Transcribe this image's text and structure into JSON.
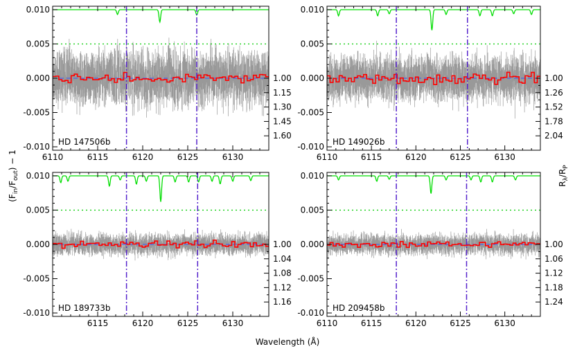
{
  "figure": {
    "xlabel": "Wavelength (Å)",
    "ylabel": "(F_in/F_out) − 1",
    "ylabel_main": "(F",
    "ylabel_sub1": "in",
    "ylabel_mid": "/F",
    "ylabel_sub2": "out",
    "ylabel_end": ") − 1",
    "right_ylabel_main": "R",
    "right_ylabel_sub1": "λ",
    "right_ylabel_mid": "/R",
    "right_ylabel_sub2": "P"
  },
  "colors": {
    "data_points": "#999999",
    "binned": "#ff0000",
    "telluric": "#00dd00",
    "reference_dotted": "#00cc00",
    "marker_lines": "#5522cc",
    "zero_line": "#3355ff"
  },
  "chart_data": [
    {
      "type": "line",
      "title": "",
      "label": "HD 147506b",
      "xlim": [
        6110,
        6134
      ],
      "ylim": [
        -0.0105,
        0.0105
      ],
      "xticks": [
        6110,
        6115,
        6120,
        6125,
        6130
      ],
      "xtick_labels": [
        "6110",
        "6115",
        "6120",
        "6125",
        "6130"
      ],
      "yticks": [
        -0.01,
        -0.005,
        0.0,
        0.005,
        0.01
      ],
      "ytick_labels": [
        "-0.010",
        "-0.005",
        "0.000",
        "0.005",
        "0.010"
      ],
      "right_ticks": [
        1.0,
        1.15,
        1.3,
        1.45,
        1.6
      ],
      "right_tick_labels": [
        "1.00",
        "1.15",
        "1.30",
        "1.45",
        "1.60"
      ],
      "right_tick_frac": [
        0.0,
        0.2,
        0.4,
        0.6,
        0.8
      ],
      "scatter_amplitude": 0.0045,
      "bin_amplitude": 0.0012,
      "telluric_lines": [
        [
          6117.2,
          0.0007
        ],
        [
          6121.9,
          0.0018
        ],
        [
          6126.0,
          0.0008
        ]
      ],
      "marker_lines": [
        6118.2,
        6126.0
      ],
      "reference_level": 0.005,
      "seed": 11
    },
    {
      "type": "line",
      "title": "",
      "label": "HD 149026b",
      "xlim": [
        6110,
        6134
      ],
      "ylim": [
        -0.0105,
        0.0105
      ],
      "xticks": [
        6110,
        6115,
        6120,
        6125,
        6130
      ],
      "xtick_labels": [
        "6110",
        "6115",
        "6120",
        "6125",
        "6130"
      ],
      "yticks": [
        -0.01,
        -0.005,
        0.0,
        0.005,
        0.01
      ],
      "ytick_labels": [
        "-0.010",
        "-0.005",
        "0.000",
        "0.005",
        "0.010"
      ],
      "right_ticks": [
        1.0,
        1.26,
        1.52,
        1.78,
        2.04
      ],
      "right_tick_labels": [
        "1.00",
        "1.26",
        "1.52",
        "1.78",
        "2.04"
      ],
      "right_tick_frac": [
        0.0,
        0.2,
        0.4,
        0.6,
        0.8
      ],
      "scatter_amplitude": 0.0038,
      "bin_amplitude": 0.0012,
      "telluric_lines": [
        [
          6111.3,
          0.0009
        ],
        [
          6115.7,
          0.0009
        ],
        [
          6117.0,
          0.0006
        ],
        [
          6121.8,
          0.003
        ],
        [
          6123.4,
          0.0007
        ],
        [
          6127.2,
          0.0009
        ],
        [
          6128.6,
          0.0009
        ],
        [
          6131.0,
          0.0006
        ],
        [
          6133.0,
          0.0007
        ]
      ],
      "marker_lines": [
        6117.8,
        6125.8
      ],
      "reference_level": 0.005,
      "seed": 23
    },
    {
      "type": "line",
      "title": "",
      "label": "HD 189733b",
      "xlim": [
        6110,
        6134
      ],
      "ylim": [
        -0.0105,
        0.0105
      ],
      "xticks": [
        6115,
        6120,
        6125,
        6130
      ],
      "xtick_labels": [
        "6115",
        "6120",
        "6125",
        "6130"
      ],
      "yticks": [
        -0.01,
        -0.005,
        0.0,
        0.005,
        0.01
      ],
      "ytick_labels": [
        "-0.010",
        "-0.005",
        "0.000",
        "0.005",
        "0.010"
      ],
      "right_ticks": [
        1.0,
        1.04,
        1.08,
        1.12,
        1.16
      ],
      "right_tick_labels": [
        "1.00",
        "1.04",
        "1.08",
        "1.12",
        "1.16"
      ],
      "right_tick_frac": [
        0.0,
        0.2,
        0.4,
        0.6,
        0.8
      ],
      "scatter_amplitude": 0.0018,
      "bin_amplitude": 0.0008,
      "telluric_lines": [
        [
          6110.9,
          0.001
        ],
        [
          6111.7,
          0.0008
        ],
        [
          6116.3,
          0.0015
        ],
        [
          6117.5,
          0.0006
        ],
        [
          6119.3,
          0.0012
        ],
        [
          6120.4,
          0.0008
        ],
        [
          6122.0,
          0.0038
        ],
        [
          6123.6,
          0.0009
        ],
        [
          6125.1,
          0.0009
        ],
        [
          6126.2,
          0.0009
        ],
        [
          6127.7,
          0.0008
        ],
        [
          6128.6,
          0.0012
        ],
        [
          6130.0,
          0.0008
        ],
        [
          6132.0,
          0.0007
        ]
      ],
      "marker_lines": [
        6118.2,
        6126.1
      ],
      "reference_level": 0.005,
      "seed": 37
    },
    {
      "type": "line",
      "title": "",
      "label": "HD 209458b",
      "xlim": [
        6110,
        6134
      ],
      "ylim": [
        -0.0105,
        0.0105
      ],
      "xticks": [
        6110,
        6115,
        6120,
        6125,
        6130
      ],
      "xtick_labels": [
        "6110",
        "6115",
        "6120",
        "6125",
        "6130"
      ],
      "yticks": [
        -0.01,
        -0.005,
        0.0,
        0.005,
        0.01
      ],
      "ytick_labels": [
        "-0.010",
        "-0.005",
        "0.000",
        "0.005",
        "0.010"
      ],
      "right_ticks": [
        1.0,
        1.06,
        1.12,
        1.18,
        1.24
      ],
      "right_tick_labels": [
        "1.00",
        "1.06",
        "1.12",
        "1.18",
        "1.24"
      ],
      "right_tick_frac": [
        0.0,
        0.2,
        0.4,
        0.6,
        0.8
      ],
      "scatter_amplitude": 0.0017,
      "bin_amplitude": 0.0007,
      "telluric_lines": [
        [
          6111.3,
          0.0006
        ],
        [
          6115.6,
          0.0008
        ],
        [
          6117.0,
          0.0005
        ],
        [
          6121.7,
          0.0026
        ],
        [
          6123.4,
          0.0006
        ],
        [
          6126.2,
          0.0006
        ],
        [
          6127.3,
          0.0009
        ],
        [
          6128.6,
          0.0009
        ],
        [
          6131.2,
          0.0006
        ]
      ],
      "marker_lines": [
        6117.8,
        6125.7
      ],
      "reference_level": 0.005,
      "seed": 53
    }
  ]
}
